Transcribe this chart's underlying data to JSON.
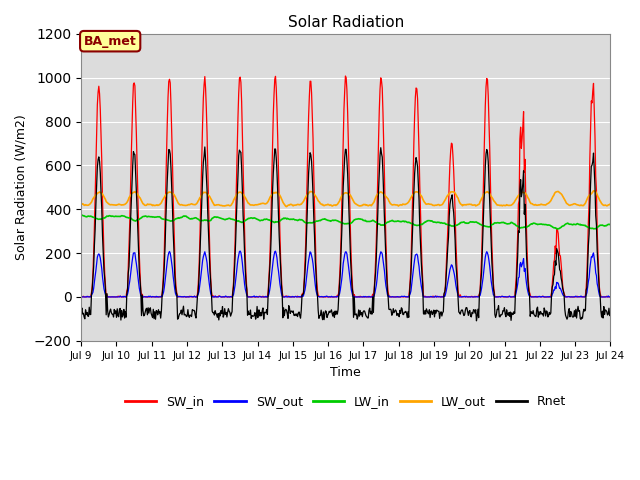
{
  "title": "Solar Radiation",
  "xlabel": "Time",
  "ylabel": "Solar Radiation (W/m2)",
  "ylim": [
    -200,
    1200
  ],
  "yticks": [
    -200,
    0,
    200,
    400,
    600,
    800,
    1000,
    1200
  ],
  "x_tick_labels": [
    "Jul 9",
    "Jul 10",
    "Jul 11",
    "Jul 12",
    "Jul 13",
    "Jul 14",
    "Jul 15",
    "Jul 16",
    "Jul 17",
    "Jul 18",
    "Jul 19",
    "Jul 20",
    "Jul 21",
    "Jul 22",
    "Jul 23",
    "Jul 24"
  ],
  "annotation_text": "BA_met",
  "annotation_bg": "#FFFF99",
  "annotation_border": "#8B0000",
  "series_colors": {
    "SW_in": "#FF0000",
    "SW_out": "#0000FF",
    "LW_in": "#00CC00",
    "LW_out": "#FFA500",
    "Rnet": "#000000"
  },
  "bg_color": "#DCDCDC",
  "fig_bg": "#FFFFFF",
  "total_days": 15,
  "dt_hours": 0.5
}
